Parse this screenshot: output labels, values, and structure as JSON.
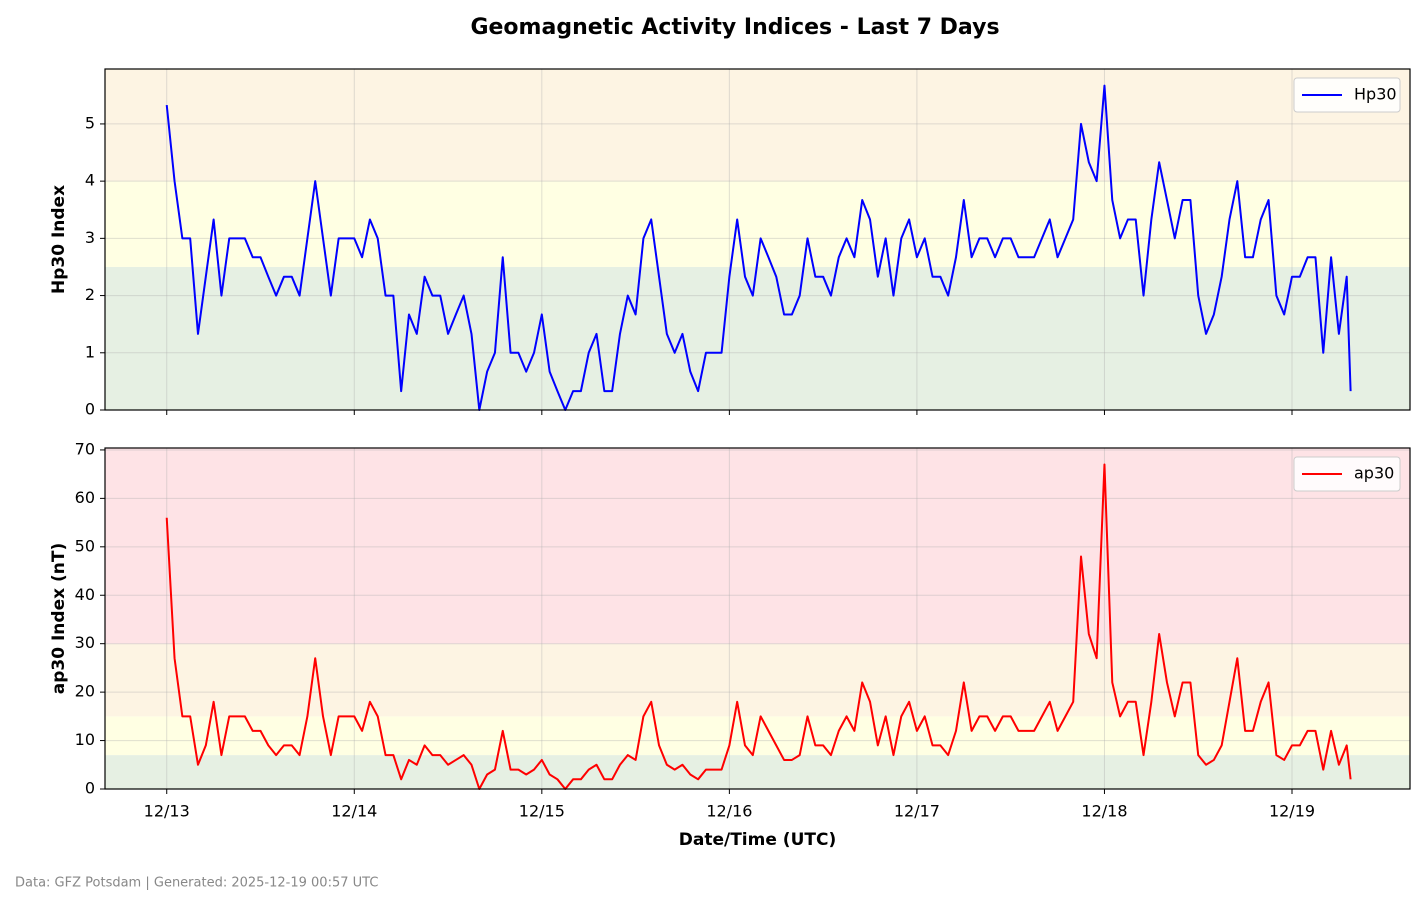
{
  "title": "Geomagnetic Activity Indices - Last 7 Days",
  "footer": "Data: GFZ Potsdam | Generated: 2025-12-19 00:57 UTC",
  "chart_data": [
    {
      "type": "line",
      "ylabel": "Hp30 Index",
      "legend": "upper right",
      "grid": true,
      "xlim": [
        -7.9,
        159.1
      ],
      "ylim": [
        0,
        5.96
      ],
      "yticks": [
        0,
        1,
        2,
        3,
        4,
        5
      ],
      "bands": [
        {
          "from": 0,
          "to": 2.5,
          "color": "#e6f0e3"
        },
        {
          "from": 2.5,
          "to": 4,
          "color": "#ffffe3"
        },
        {
          "from": 4,
          "to": 5.96,
          "color": "#fdf4e3"
        }
      ],
      "x": [
        0,
        1,
        2,
        3,
        4,
        5,
        6,
        7,
        8,
        9,
        10,
        11,
        12,
        13,
        14,
        15,
        16,
        17,
        18,
        19,
        20,
        21,
        22,
        23,
        24,
        25,
        26,
        27,
        28,
        29,
        30,
        31,
        32,
        33,
        34,
        35,
        36,
        37,
        38,
        39,
        40,
        41,
        42,
        43,
        44,
        45,
        46,
        47,
        48,
        49,
        50,
        51,
        52,
        53,
        54,
        55,
        56,
        57,
        58,
        59,
        60,
        61,
        62,
        63,
        64,
        65,
        66,
        67,
        68,
        69,
        70,
        71,
        72,
        73,
        74,
        75,
        76,
        77,
        78,
        79,
        80,
        81,
        82,
        83,
        84,
        85,
        86,
        87,
        88,
        89,
        90,
        91,
        92,
        93,
        94,
        95,
        96,
        97,
        98,
        99,
        100,
        101,
        102,
        103,
        104,
        105,
        106,
        107,
        108,
        109,
        110,
        111,
        112,
        113,
        114,
        115,
        116,
        117,
        118,
        119,
        120,
        121,
        122,
        123,
        124,
        125,
        126,
        127,
        128,
        129,
        130,
        131,
        132,
        133,
        134,
        135,
        136,
        137,
        138,
        139,
        140,
        141,
        142,
        143,
        144,
        145,
        146,
        147,
        148,
        149,
        150,
        151,
        151.5
      ],
      "series": [
        {
          "name": "Hp30",
          "color": "#0000ff",
          "values": [
            5.33,
            4.0,
            3.0,
            3.0,
            1.33,
            2.33,
            3.33,
            2.0,
            3.0,
            3.0,
            3.0,
            2.67,
            2.67,
            2.33,
            2.0,
            2.33,
            2.33,
            2.0,
            3.0,
            4.0,
            3.0,
            2.0,
            3.0,
            3.0,
            3.0,
            2.67,
            3.33,
            3.0,
            2.0,
            2.0,
            0.33,
            1.67,
            1.33,
            2.33,
            2.0,
            2.0,
            1.33,
            1.67,
            2.0,
            1.33,
            0,
            0.67,
            1.0,
            2.67,
            1.0,
            1.0,
            0.67,
            1.0,
            1.67,
            0.67,
            0.33,
            0,
            0.33,
            0.33,
            1.0,
            1.33,
            0.33,
            0.33,
            1.33,
            2.0,
            1.67,
            3.0,
            3.33,
            2.33,
            1.33,
            1.0,
            1.33,
            0.67,
            0.33,
            1.0,
            1.0,
            1.0,
            2.33,
            3.33,
            2.33,
            2.0,
            3.0,
            2.67,
            2.33,
            1.67,
            1.67,
            2.0,
            3.0,
            2.33,
            2.33,
            2.0,
            2.67,
            3.0,
            2.67,
            3.67,
            3.33,
            2.33,
            3.0,
            2.0,
            3.0,
            3.33,
            2.67,
            3.0,
            2.33,
            2.33,
            2.0,
            2.67,
            3.67,
            2.67,
            3.0,
            3.0,
            2.67,
            3.0,
            3.0,
            2.67,
            2.67,
            2.67,
            3.0,
            3.33,
            2.67,
            3.0,
            3.33,
            5.0,
            4.33,
            4.0,
            5.67,
            3.67,
            3.0,
            3.33,
            3.33,
            2.0,
            3.33,
            4.33,
            3.67,
            3.0,
            3.67,
            3.67,
            2.0,
            1.33,
            1.67,
            2.33,
            3.33,
            4.0,
            2.67,
            2.67,
            3.33,
            3.67,
            2.0,
            1.67,
            2.33,
            2.33,
            2.67,
            2.67,
            1.0,
            2.67,
            1.33,
            2.33,
            0.33
          ]
        }
      ]
    },
    {
      "type": "line",
      "ylabel": "ap30 Index (nT)",
      "xlabel": "Date/Time (UTC)",
      "legend": "upper right",
      "grid": true,
      "xlim": [
        -7.9,
        159.1
      ],
      "ylim": [
        0,
        70.4
      ],
      "yticks": [
        0,
        10,
        20,
        30,
        40,
        50,
        60,
        70
      ],
      "xticks": [
        {
          "value": 0,
          "label": "12/13"
        },
        {
          "value": 24,
          "label": "12/14"
        },
        {
          "value": 48,
          "label": "12/15"
        },
        {
          "value": 72,
          "label": "12/16"
        },
        {
          "value": 96,
          "label": "12/17"
        },
        {
          "value": 120,
          "label": "12/18"
        },
        {
          "value": 144,
          "label": "12/19"
        }
      ],
      "bands": [
        {
          "from": 0,
          "to": 7,
          "color": "#e6f0e3"
        },
        {
          "from": 7,
          "to": 15,
          "color": "#ffffe3"
        },
        {
          "from": 15,
          "to": 30,
          "color": "#fdf4e3"
        },
        {
          "from": 30,
          "to": 70.4,
          "color": "#fee3e6"
        }
      ],
      "x": [
        0,
        1,
        2,
        3,
        4,
        5,
        6,
        7,
        8,
        9,
        10,
        11,
        12,
        13,
        14,
        15,
        16,
        17,
        18,
        19,
        20,
        21,
        22,
        23,
        24,
        25,
        26,
        27,
        28,
        29,
        30,
        31,
        32,
        33,
        34,
        35,
        36,
        37,
        38,
        39,
        40,
        41,
        42,
        43,
        44,
        45,
        46,
        47,
        48,
        49,
        50,
        51,
        52,
        53,
        54,
        55,
        56,
        57,
        58,
        59,
        60,
        61,
        62,
        63,
        64,
        65,
        66,
        67,
        68,
        69,
        70,
        71,
        72,
        73,
        74,
        75,
        76,
        77,
        78,
        79,
        80,
        81,
        82,
        83,
        84,
        85,
        86,
        87,
        88,
        89,
        90,
        91,
        92,
        93,
        94,
        95,
        96,
        97,
        98,
        99,
        100,
        101,
        102,
        103,
        104,
        105,
        106,
        107,
        108,
        109,
        110,
        111,
        112,
        113,
        114,
        115,
        116,
        117,
        118,
        119,
        120,
        121,
        122,
        123,
        124,
        125,
        126,
        127,
        128,
        129,
        130,
        131,
        132,
        133,
        134,
        135,
        136,
        137,
        138,
        139,
        140,
        141,
        142,
        143,
        144,
        145,
        146,
        147,
        148,
        149,
        150,
        151,
        151.5
      ],
      "series": [
        {
          "name": "ap30",
          "color": "#ff0000",
          "values": [
            56,
            27,
            15,
            15,
            5,
            9,
            18,
            7,
            15,
            15,
            15,
            12,
            12,
            9,
            7,
            9,
            9,
            7,
            15,
            27,
            15,
            7,
            15,
            15,
            15,
            12,
            18,
            15,
            7,
            7,
            2,
            6,
            5,
            9,
            7,
            7,
            5,
            6,
            7,
            5,
            0,
            3,
            4,
            12,
            4,
            4,
            3,
            4,
            6,
            3,
            2,
            0,
            2,
            2,
            4,
            5,
            2,
            2,
            5,
            7,
            6,
            15,
            18,
            9,
            5,
            4,
            5,
            3,
            2,
            4,
            4,
            4,
            9,
            18,
            9,
            7,
            15,
            12,
            9,
            6,
            6,
            7,
            15,
            9,
            9,
            7,
            12,
            15,
            12,
            22,
            18,
            9,
            15,
            7,
            15,
            18,
            12,
            15,
            9,
            9,
            7,
            12,
            22,
            12,
            15,
            15,
            12,
            15,
            15,
            12,
            12,
            12,
            15,
            18,
            12,
            15,
            18,
            48,
            32,
            27,
            67,
            22,
            15,
            18,
            18,
            7,
            18,
            32,
            22,
            15,
            22,
            22,
            7,
            5,
            6,
            9,
            18,
            27,
            12,
            12,
            18,
            22,
            7,
            6,
            9,
            9,
            12,
            12,
            4,
            12,
            5,
            9,
            2
          ]
        }
      ]
    }
  ]
}
